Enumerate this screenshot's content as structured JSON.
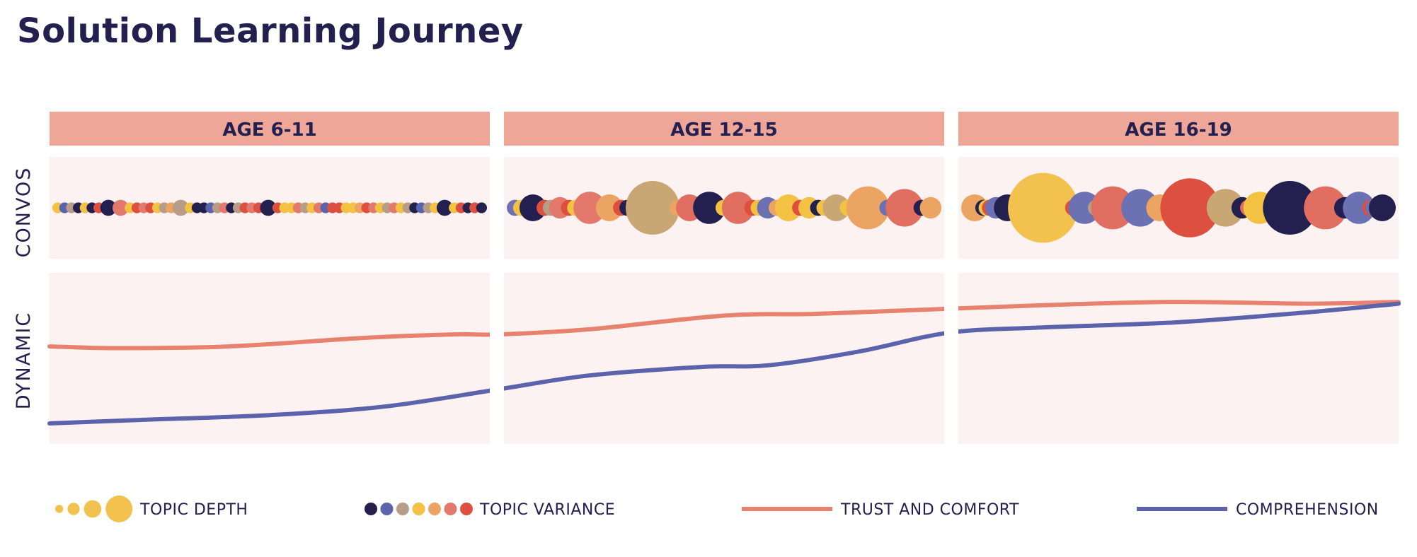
{
  "title": "Solution Learning Journey",
  "colors": {
    "header_band": "#eda698",
    "panel_bg": "#fcf2f1",
    "title_text": "#23204f",
    "trust_line": "#e7826f",
    "comprehension_line": "#5a63ab"
  },
  "palette": [
    "#23204f",
    "#5a63ab",
    "#b79d86",
    "#f3c242",
    "#eca462",
    "#e3786c",
    "#dd5040",
    "#6c71b3",
    "#c9a774",
    "#e06e61",
    "#f2c14e"
  ],
  "chart_data": {
    "type": "line",
    "age_groups": [
      "AGE 6-11",
      "AGE 12-15",
      "AGE 16-19"
    ],
    "row_labels": [
      "CONVOS",
      "DYNAMIC"
    ],
    "x_range": [
      0,
      3
    ],
    "y_range": [
      0,
      1
    ],
    "series": [
      {
        "name": "TRUST AND COMFORT",
        "color": "#e7826f",
        "x": [
          0,
          0.15,
          0.4,
          0.7,
          0.9,
          1.0,
          1.2,
          1.5,
          1.7,
          1.9,
          2.0,
          2.2,
          2.5,
          2.8,
          3.0
        ],
        "y": [
          0.57,
          0.56,
          0.57,
          0.62,
          0.64,
          0.64,
          0.67,
          0.75,
          0.76,
          0.78,
          0.79,
          0.81,
          0.83,
          0.82,
          0.83
        ]
      },
      {
        "name": "COMPREHENSION",
        "color": "#5a63ab",
        "x": [
          0,
          0.2,
          0.5,
          0.75,
          1.0,
          1.2,
          1.45,
          1.6,
          1.8,
          2.0,
          2.2,
          2.5,
          2.8,
          3.0
        ],
        "y": [
          0.12,
          0.14,
          0.17,
          0.22,
          0.32,
          0.4,
          0.45,
          0.46,
          0.54,
          0.65,
          0.68,
          0.71,
          0.77,
          0.82
        ]
      }
    ],
    "topic_bubbles": [
      {
        "group": "AGE 6-11",
        "sizes": [
          0.2,
          0.2,
          0.2,
          0.2,
          0.2,
          0.2,
          0.2,
          0.3,
          0.3,
          0.2,
          0.2,
          0.2,
          0.2,
          0.2,
          0.2,
          0.2,
          0.3,
          0.2,
          0.2,
          0.2,
          0.2,
          0.2,
          0.2,
          0.2,
          0.2,
          0.2,
          0.2,
          0.2,
          0.3,
          0.2,
          0.2,
          0.2,
          0.2,
          0.2,
          0.2,
          0.2,
          0.2,
          0.2,
          0.2,
          0.2,
          0.2,
          0.2,
          0.2,
          0.2,
          0.2,
          0.2,
          0.2,
          0.2,
          0.2,
          0.2,
          0.2,
          0.2,
          0.2,
          0.3,
          0.2,
          0.2,
          0.2,
          0.2,
          0.2
        ],
        "colors": [
          3,
          1,
          2,
          0,
          3,
          0,
          6,
          0,
          5,
          3,
          6,
          5,
          6,
          3,
          2,
          4,
          2,
          3,
          0,
          0,
          1,
          2,
          5,
          0,
          2,
          6,
          5,
          6,
          0,
          6,
          3,
          3,
          5,
          2,
          3,
          5,
          1,
          6,
          6,
          3,
          3,
          4,
          6,
          5,
          3,
          2,
          5,
          3,
          2,
          0,
          1,
          2,
          3,
          0,
          3,
          6,
          0,
          6,
          0
        ]
      },
      {
        "group": "AGE 12-15",
        "sizes": [
          0.3,
          0.3,
          0.5,
          0.3,
          0.3,
          0.4,
          0.3,
          0.3,
          0.6,
          0.5,
          0.3,
          0.3,
          1.0,
          0.3,
          0.5,
          0.6,
          0.3,
          0.6,
          0.3,
          0.3,
          0.4,
          0.3,
          0.5,
          0.3,
          0.4,
          0.3,
          0.3,
          0.5,
          0.3,
          0.8,
          0.3,
          0.7,
          0.3,
          0.4
        ],
        "colors": [
          7,
          3,
          0,
          6,
          2,
          5,
          6,
          3,
          5,
          4,
          6,
          0,
          8,
          4,
          9,
          0,
          3,
          9,
          6,
          3,
          7,
          4,
          3,
          6,
          3,
          0,
          3,
          8,
          3,
          4,
          7,
          9,
          0,
          4
        ]
      },
      {
        "group": "AGE 16-19",
        "sizes": [
          0.5,
          0.3,
          0.3,
          0.3,
          0.4,
          0.5,
          1.3,
          0.3,
          0.6,
          0.3,
          0.8,
          0.7,
          0.5,
          1.1,
          0.7,
          0.4,
          0.3,
          0.6,
          1.0,
          0.8,
          0.4,
          0.6,
          0.3,
          0.3,
          0.5
        ],
        "colors": [
          4,
          0,
          3,
          6,
          7,
          0,
          10,
          6,
          7,
          2,
          9,
          7,
          4,
          6,
          8,
          0,
          9,
          3,
          0,
          9,
          0,
          7,
          6,
          7,
          0
        ]
      }
    ]
  },
  "legend": {
    "topic_depth": "TOPIC DEPTH",
    "topic_variance": "TOPIC VARIANCE",
    "trust_and_comfort": "TRUST AND COMFORT",
    "comprehension": "COMPREHENSION",
    "depth_sizes": [
      0.3,
      0.45,
      0.65,
      1.0
    ],
    "variance_colors": [
      0,
      1,
      2,
      3,
      4,
      5,
      6
    ]
  }
}
